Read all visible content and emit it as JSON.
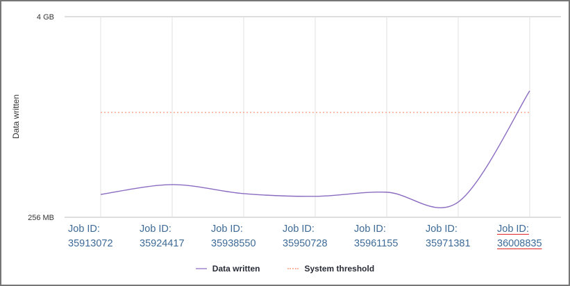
{
  "chart_data": {
    "type": "line",
    "title": "",
    "xlabel": "",
    "ylabel": "Data written",
    "yscale": "log2",
    "ylim_labels": [
      "256 MB",
      "4 GB"
    ],
    "ylim_mb": [
      256,
      4096
    ],
    "y_ticks": [
      {
        "label": "4 GB",
        "value_mb": 4096
      },
      {
        "label": "256 MB",
        "value_mb": 256
      }
    ],
    "categories": [
      "Job ID: 35913072",
      "Job ID: 35924417",
      "Job ID: 35938550",
      "Job ID: 35950728",
      "Job ID: 35961155",
      "Job ID: 35971381",
      "Job ID: 36008835"
    ],
    "series": [
      {
        "name": "Data written",
        "style": "solid-smooth",
        "color": "#8a6bc1",
        "unit": "MB",
        "values": [
          351,
          402,
          355,
          342,
          362,
          316,
          1470
        ]
      },
      {
        "name": "System threshold",
        "style": "dotted",
        "color": "#f6a98e",
        "unit": "MB",
        "values": [
          1090,
          1090,
          1090,
          1090,
          1090,
          1090,
          1090
        ]
      }
    ],
    "grid": {
      "vertical": true,
      "horizontal_at_ticks": true
    },
    "legend_position": "bottom-center"
  },
  "axis": {
    "y_label": "Data written",
    "y_top_tick": "4 GB",
    "y_bottom_tick": "256 MB"
  },
  "x_labels": [
    {
      "line1": "Job ID:",
      "line2": "35913072"
    },
    {
      "line1": "Job ID:",
      "line2": "35924417"
    },
    {
      "line1": "Job ID:",
      "line2": "35938550"
    },
    {
      "line1": "Job ID:",
      "line2": "35950728"
    },
    {
      "line1": "Job ID:",
      "line2": "35961155"
    },
    {
      "line1": "Job ID:",
      "line2": "35971381"
    },
    {
      "line1": "Job ID:",
      "line2": "36008835"
    }
  ],
  "legend": {
    "items": [
      {
        "label": "Data written",
        "color": "#b8a4d8"
      },
      {
        "label": "System threshold",
        "color": "#f6b7a2"
      }
    ]
  },
  "colors": {
    "line": "#8a6bc1",
    "threshold": "#f6a98e",
    "grid": "#e2e2e2",
    "axis_label": "#3d6a96",
    "frame": "#767676"
  }
}
